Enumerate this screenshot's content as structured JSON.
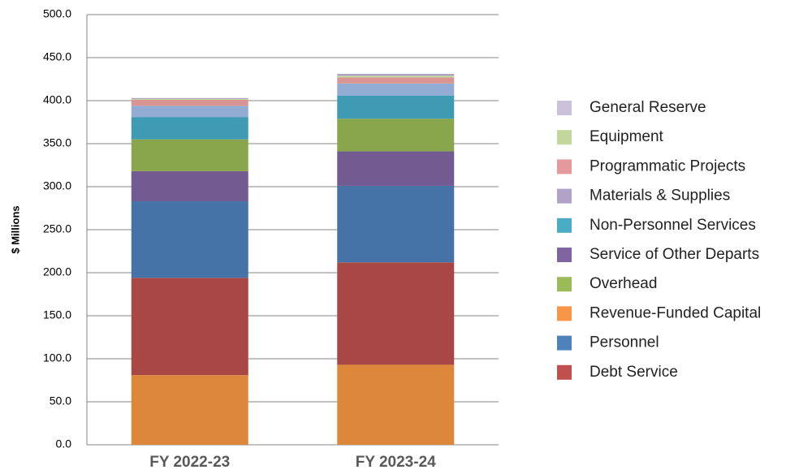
{
  "chart_data": {
    "type": "stacked_bar",
    "y_label": "$ Millions",
    "categories": [
      "FY 2022-23",
      "FY 2023-24"
    ],
    "series": [
      {
        "name": "Revenue-Funded Capital",
        "color": "#dd873b",
        "values": [
          81,
          93
        ]
      },
      {
        "name": "Debt Service",
        "color": "#a94745",
        "values": [
          113,
          119
        ]
      },
      {
        "name": "Personnel",
        "color": "#4573a7",
        "values": [
          89,
          89
        ]
      },
      {
        "name": "Service of Other Departs",
        "color": "#735a91",
        "values": [
          35,
          40
        ]
      },
      {
        "name": "Overhead",
        "color": "#8aa64c",
        "values": [
          37,
          38
        ]
      },
      {
        "name": "Non-Personnel Services",
        "color": "#3f9bb3",
        "values": [
          26,
          27
        ]
      },
      {
        "name": "Materials & Supplies",
        "color": "#93acd3",
        "values": [
          13,
          14
        ]
      },
      {
        "name": "Programmatic Projects",
        "color": "#d99592",
        "values": [
          7,
          7
        ]
      },
      {
        "name": "Equipment",
        "color": "#c3d69b",
        "values": [
          1,
          2
        ]
      },
      {
        "name": "General Reserve",
        "color": "#a99bc0",
        "values": [
          1,
          2
        ]
      }
    ],
    "legend": [
      {
        "name": "General Reserve",
        "color": "#ccc1da"
      },
      {
        "name": "Equipment",
        "color": "#c3d69b"
      },
      {
        "name": "Programmatic Projects",
        "color": "#e6999a"
      },
      {
        "name": "Materials & Supplies",
        "color": "#b3a2c7"
      },
      {
        "name": "Non-Personnel Services",
        "color": "#4bacc6"
      },
      {
        "name": "Service of Other Departs",
        "color": "#8064a2"
      },
      {
        "name": "Overhead",
        "color": "#9bbb59"
      },
      {
        "name": "Revenue-Funded Capital",
        "color": "#f79646"
      },
      {
        "name": "Personnel",
        "color": "#4f81bd"
      },
      {
        "name": "Debt Service",
        "color": "#c0504d"
      }
    ],
    "ylim": [
      0,
      500
    ],
    "yticks": [
      {
        "value": 0,
        "label": "0.0"
      },
      {
        "value": 50,
        "label": "50.0"
      },
      {
        "value": 100,
        "label": "100.0"
      },
      {
        "value": 150,
        "label": "150.0"
      },
      {
        "value": 200,
        "label": "200.0"
      },
      {
        "value": 250,
        "label": "250.0"
      },
      {
        "value": 300,
        "label": "300.0"
      },
      {
        "value": 350,
        "label": "350.0"
      },
      {
        "value": 400,
        "label": "400.0"
      },
      {
        "value": 450,
        "label": "450.0"
      },
      {
        "value": 500,
        "label": "500.0"
      }
    ],
    "grid": true
  }
}
